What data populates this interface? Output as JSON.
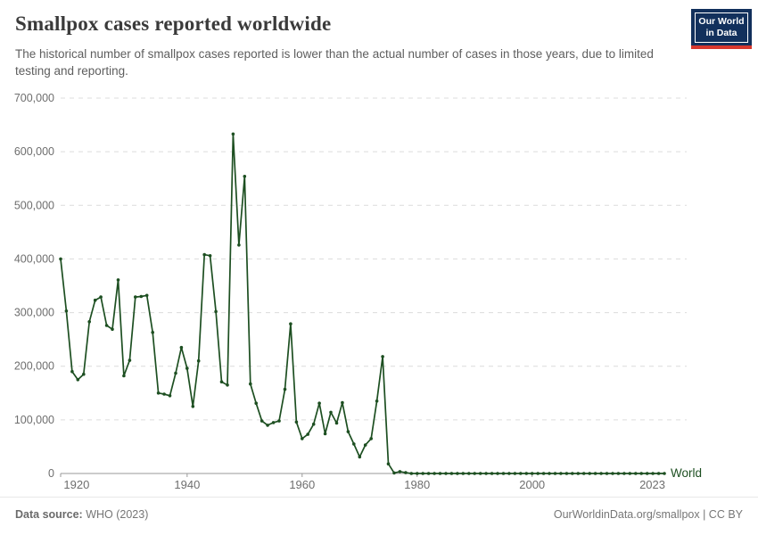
{
  "header": {
    "title": "Smallpox cases reported worldwide",
    "subtitle": "The historical number of smallpox cases reported is lower than the actual number of cases in those years, due to limited testing and reporting.",
    "logo": {
      "line1": "Our World",
      "line2": "in Data"
    }
  },
  "footer": {
    "source_label": "Data source:",
    "source_value": " WHO (2023)",
    "credit": "OurWorldinData.org/smallpox | CC BY"
  },
  "colors": {
    "line": "#1d4f21",
    "gridline": "#dcdcdc",
    "axis_line": "#9a9a9a",
    "axis_text": "#6e6e6e",
    "series_label": "#1d4f21"
  },
  "chart_data": {
    "type": "line",
    "title": "Smallpox cases reported worldwide",
    "xlabel": "",
    "ylabel": "",
    "series_label": "World",
    "ylim": [
      0,
      700000
    ],
    "yticks": [
      0,
      100000,
      200000,
      300000,
      400000,
      500000,
      600000,
      700000
    ],
    "xticks": [
      1920,
      1940,
      1960,
      1980,
      2000,
      2023
    ],
    "grid": "horizontal-dashed",
    "legend": "line-end-label",
    "years": [
      1918,
      1919,
      1920,
      1921,
      1922,
      1923,
      1924,
      1925,
      1926,
      1927,
      1928,
      1929,
      1930,
      1931,
      1932,
      1933,
      1934,
      1935,
      1936,
      1937,
      1938,
      1939,
      1940,
      1941,
      1942,
      1943,
      1944,
      1945,
      1946,
      1947,
      1948,
      1949,
      1950,
      1951,
      1952,
      1953,
      1954,
      1955,
      1956,
      1957,
      1958,
      1959,
      1960,
      1961,
      1962,
      1963,
      1964,
      1965,
      1966,
      1967,
      1968,
      1969,
      1970,
      1971,
      1972,
      1973,
      1974,
      1975,
      1976,
      1977,
      1978,
      1979,
      1980,
      1981,
      1982,
      1983,
      1984,
      1985,
      1986,
      1987,
      1988,
      1989,
      1990,
      1991,
      1992,
      1993,
      1994,
      1995,
      1996,
      1997,
      1998,
      1999,
      2000,
      2001,
      2002,
      2003,
      2004,
      2005,
      2006,
      2007,
      2008,
      2009,
      2010,
      2011,
      2012,
      2013,
      2014,
      2015,
      2016,
      2017,
      2018,
      2019,
      2020,
      2021,
      2022,
      2023
    ],
    "values": [
      400000,
      303000,
      190000,
      175000,
      185000,
      283000,
      323000,
      329000,
      276000,
      269000,
      361000,
      182000,
      211000,
      329000,
      330000,
      332000,
      263000,
      150000,
      148000,
      145000,
      187000,
      235000,
      196000,
      125000,
      210000,
      408000,
      406000,
      302000,
      171000,
      165000,
      633000,
      426000,
      554000,
      167000,
      131000,
      98000,
      90000,
      95000,
      98000,
      157000,
      279000,
      96000,
      65000,
      73000,
      92000,
      131000,
      74000,
      114000,
      94000,
      132000,
      78000,
      55000,
      31000,
      53000,
      65000,
      135000,
      218000,
      18000,
      1000,
      3500,
      1500,
      0,
      0,
      0,
      0,
      0,
      0,
      0,
      0,
      0,
      0,
      0,
      0,
      0,
      0,
      0,
      0,
      0,
      0,
      0,
      0,
      0,
      0,
      0,
      0,
      0,
      0,
      0,
      0,
      0,
      0,
      0,
      0,
      0,
      0,
      0,
      0,
      0,
      0,
      0,
      0,
      0,
      0,
      0,
      0,
      0
    ]
  }
}
